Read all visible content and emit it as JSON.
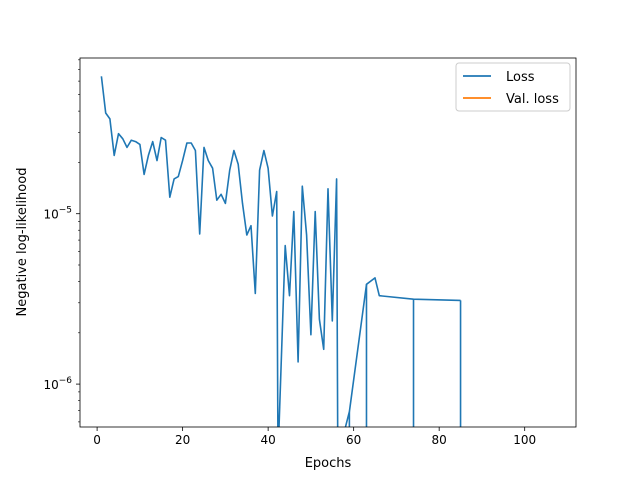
{
  "chart_data": {
    "type": "line",
    "title": "",
    "xlabel": "Epochs",
    "ylabel": "Negative log-likelihood",
    "xlim": [
      -4,
      112
    ],
    "ylim": [
      5.6e-07,
      8.2e-05
    ],
    "yscale": "log",
    "x_ticks": [
      0,
      20,
      40,
      60,
      80,
      100
    ],
    "y_ticks": [
      {
        "value": 1e-06,
        "base": "10",
        "exp": "−6"
      },
      {
        "value": 1e-05,
        "base": "10",
        "exp": "−5"
      }
    ],
    "grid": false,
    "legend": {
      "placement": "top-right",
      "entries": [
        "Loss",
        "Val. loss"
      ]
    },
    "series": [
      {
        "name": "Loss",
        "color": "#1f77b4",
        "points": [
          [
            1,
            6.4e-05
          ],
          [
            2,
            3.9e-05
          ],
          [
            3,
            3.6e-05
          ],
          [
            4,
            2.2e-05
          ],
          [
            5,
            2.95e-05
          ],
          [
            6,
            2.75e-05
          ],
          [
            7,
            2.45e-05
          ],
          [
            8,
            2.7e-05
          ],
          [
            9,
            2.65e-05
          ],
          [
            10,
            2.55e-05
          ],
          [
            11,
            1.7e-05
          ],
          [
            12,
            2.2e-05
          ],
          [
            13,
            2.65e-05
          ],
          [
            14,
            2.05e-05
          ],
          [
            15,
            2.8e-05
          ],
          [
            16,
            2.7e-05
          ],
          [
            17,
            1.25e-05
          ],
          [
            18,
            1.6e-05
          ],
          [
            19,
            1.65e-05
          ],
          [
            20,
            2.05e-05
          ],
          [
            21,
            2.6e-05
          ],
          [
            22,
            2.6e-05
          ],
          [
            23,
            2.35e-05
          ],
          [
            24,
            7.6e-06
          ],
          [
            25,
            2.45e-05
          ],
          [
            26,
            2.05e-05
          ],
          [
            27,
            1.85e-05
          ],
          [
            28,
            1.2e-05
          ],
          [
            29,
            1.3e-05
          ],
          [
            30,
            1.15e-05
          ],
          [
            31,
            1.8e-05
          ],
          [
            32,
            2.35e-05
          ],
          [
            33,
            1.95e-05
          ],
          [
            34,
            1.15e-05
          ],
          [
            35,
            7.5e-06
          ],
          [
            36,
            8.5e-06
          ],
          [
            37,
            3.4e-06
          ],
          [
            38,
            1.8e-05
          ],
          [
            39,
            2.35e-05
          ],
          [
            40,
            1.85e-05
          ],
          [
            41,
            9.7e-06
          ],
          [
            42,
            1.35e-05
          ],
          [
            42.3,
            null
          ],
          [
            44,
            6.5e-06
          ],
          [
            45,
            3.3e-06
          ],
          [
            46,
            1.03e-05
          ],
          [
            47,
            1.35e-06
          ],
          [
            48,
            1.45e-05
          ],
          [
            49,
            7.5e-06
          ],
          [
            50,
            1.95e-06
          ],
          [
            51,
            1.03e-05
          ],
          [
            52,
            2.4e-06
          ],
          [
            53,
            1.6e-06
          ],
          [
            54,
            1.4e-05
          ],
          [
            55,
            2.35e-06
          ],
          [
            56,
            1.6e-05
          ],
          [
            56.3,
            null
          ],
          [
            59,
            6.9e-07
          ],
          [
            63,
            3.85e-06
          ],
          [
            65,
            4.2e-06
          ],
          [
            66,
            3.3e-06
          ],
          [
            74,
            3.15e-06
          ],
          [
            85,
            3.1e-06
          ]
        ]
      },
      {
        "name": "Val. loss",
        "color": "#ff7f0e",
        "points": []
      }
    ]
  }
}
